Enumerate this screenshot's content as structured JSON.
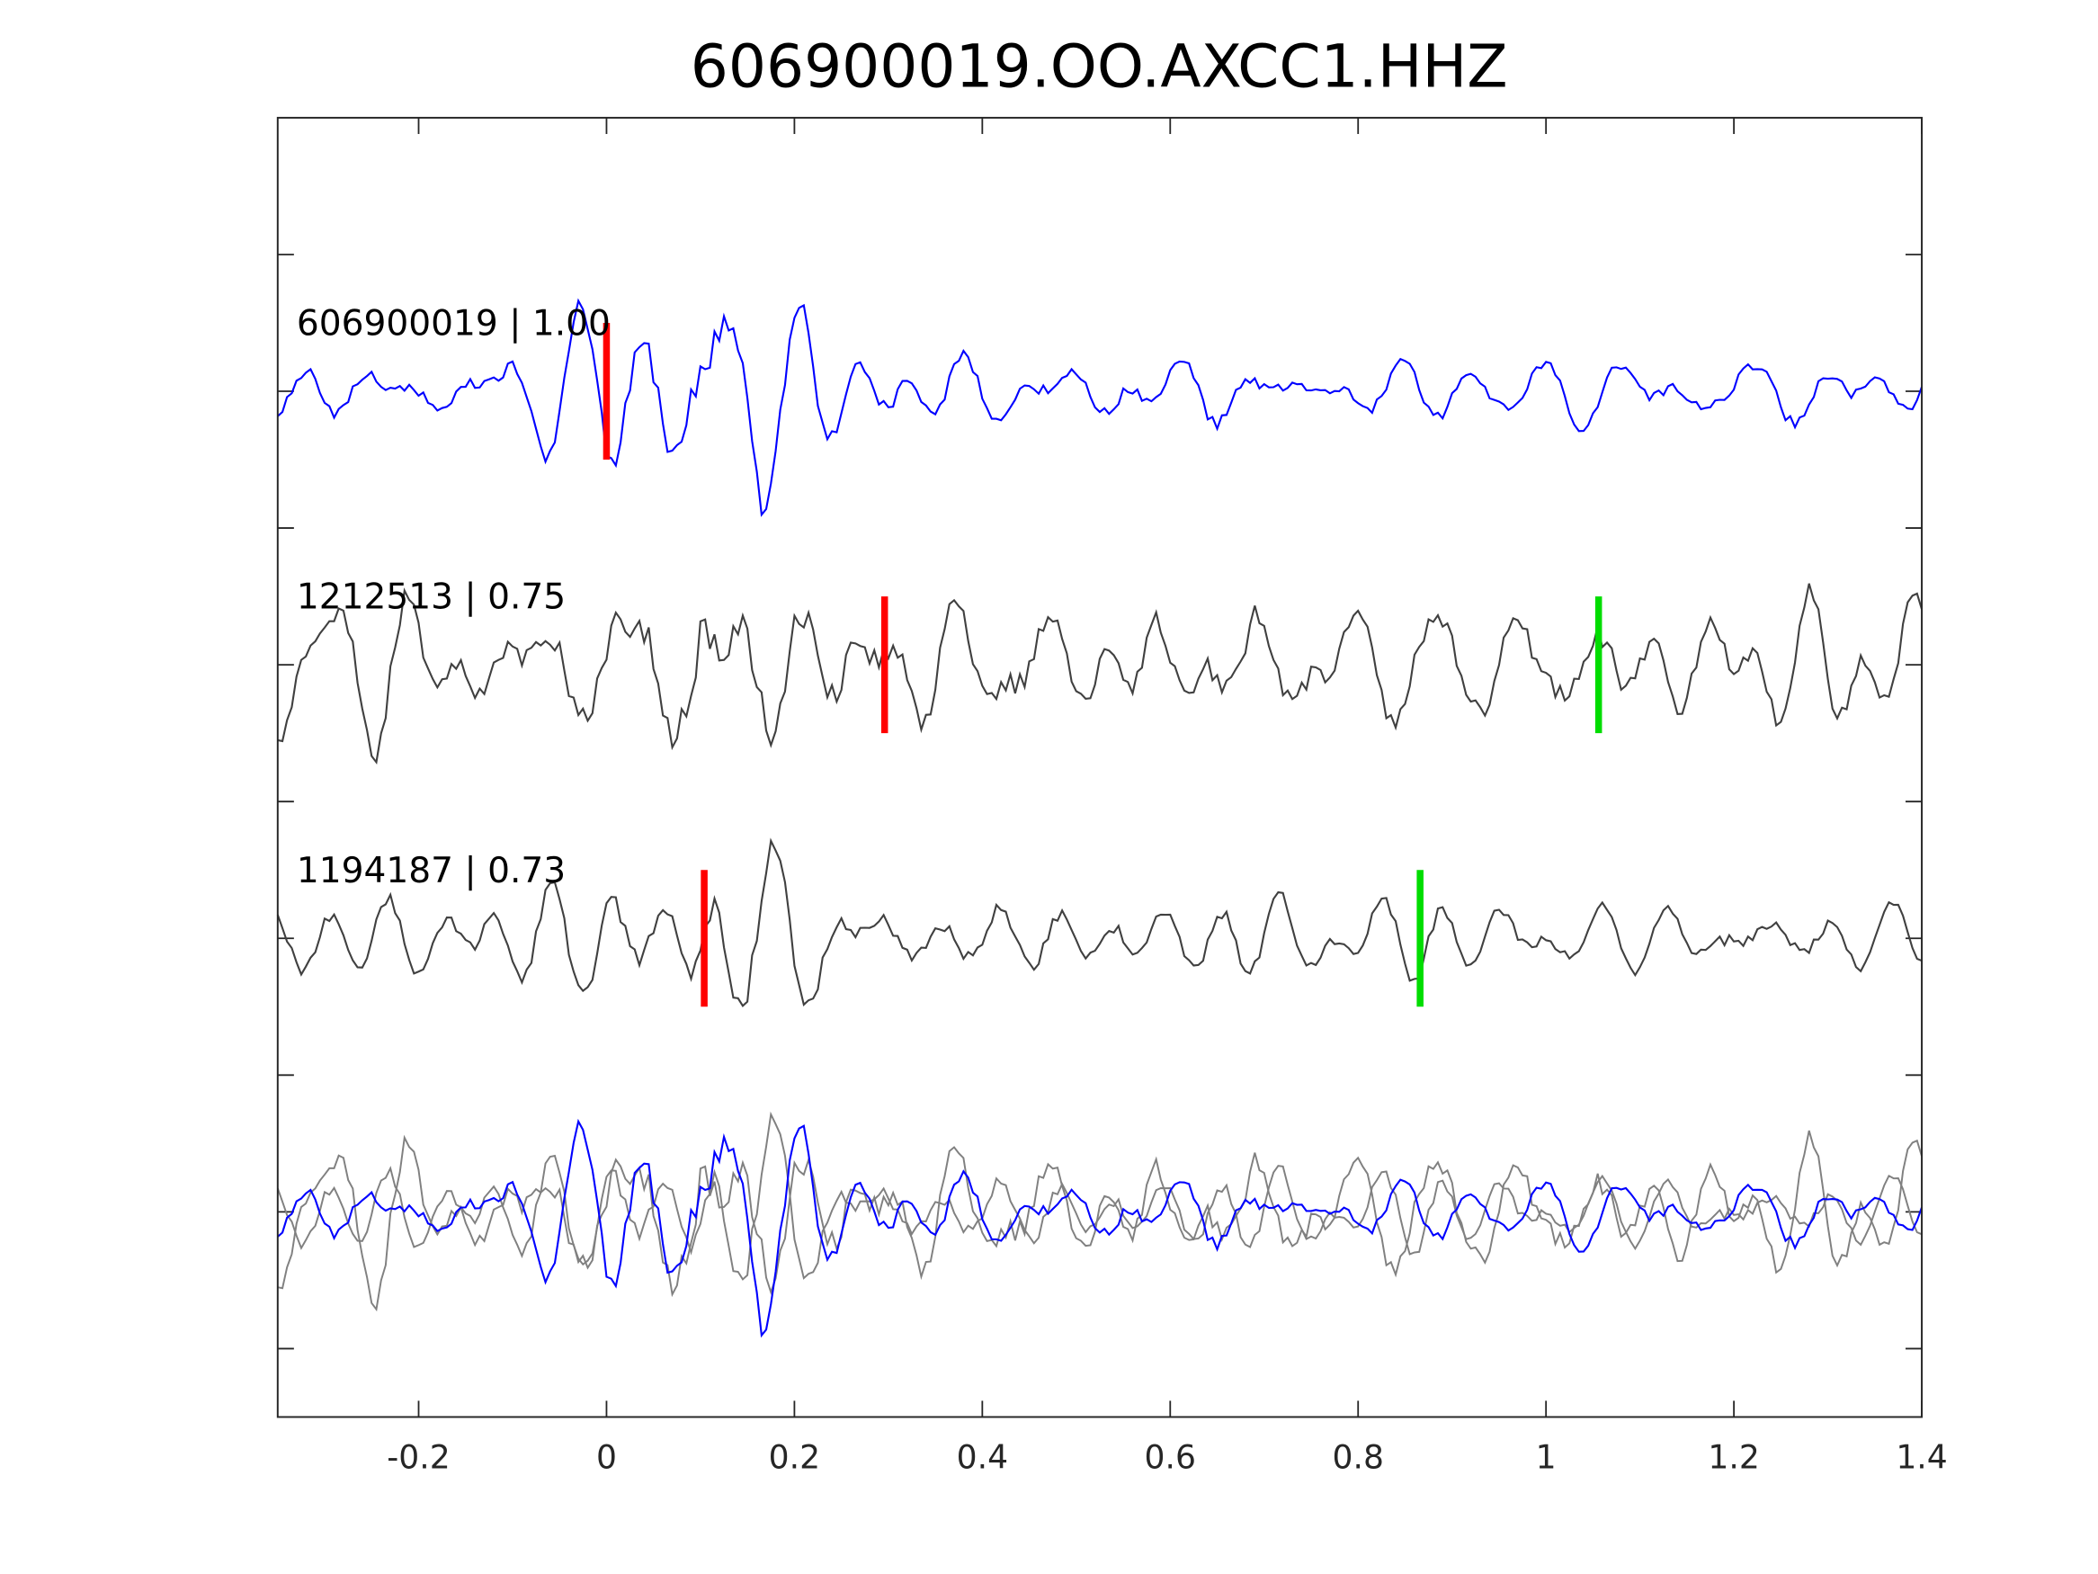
{
  "chart_data": {
    "type": "line",
    "title": "606900019.OO.AXCC1.HHZ",
    "xlabel": "",
    "ylabel": "",
    "xlim": [
      -0.35,
      1.4
    ],
    "ylim": [
      0,
      9.5
    ],
    "xticks": [
      -0.2,
      0,
      0.2,
      0.4,
      0.6,
      0.8,
      1,
      1.2,
      1.4
    ],
    "xtick_labels": [
      "-0.2",
      "0",
      "0.2",
      "0.4",
      "0.6",
      "0.8",
      "1",
      "1.2",
      "1.4"
    ],
    "yticks": [
      0.5,
      1.5,
      2.5,
      3.5,
      4.5,
      5.5,
      6.5,
      7.5,
      8.5
    ],
    "grid": false,
    "traces": [
      {
        "id": "606900019",
        "cc": "1.00",
        "label": "606900019 | 1.00",
        "offset": 7.5,
        "color": "#0000ff",
        "seed": 3,
        "burst": 1.0,
        "picks": [
          {
            "time": 0.0,
            "color": "#ff0000"
          }
        ]
      },
      {
        "id": "1212513",
        "cc": "0.75",
        "label": "1212513 | 0.75",
        "offset": 5.5,
        "color": "#404040",
        "seed": 11,
        "burst": 0.6,
        "picks": [
          {
            "time": 0.296,
            "color": "#ff0000"
          },
          {
            "time": 1.056,
            "color": "#00dd00"
          }
        ]
      },
      {
        "id": "1194187",
        "cc": "0.73",
        "label": "1194187 | 0.73",
        "offset": 3.5,
        "color": "#404040",
        "seed": 23,
        "burst": 0.6,
        "picks": [
          {
            "time": 0.104,
            "color": "#ff0000"
          },
          {
            "time": 0.866,
            "color": "#00dd00"
          }
        ]
      }
    ],
    "overlay": {
      "offset": 1.5,
      "reference_color": "#0000ff",
      "others_color": "#808080"
    }
  }
}
